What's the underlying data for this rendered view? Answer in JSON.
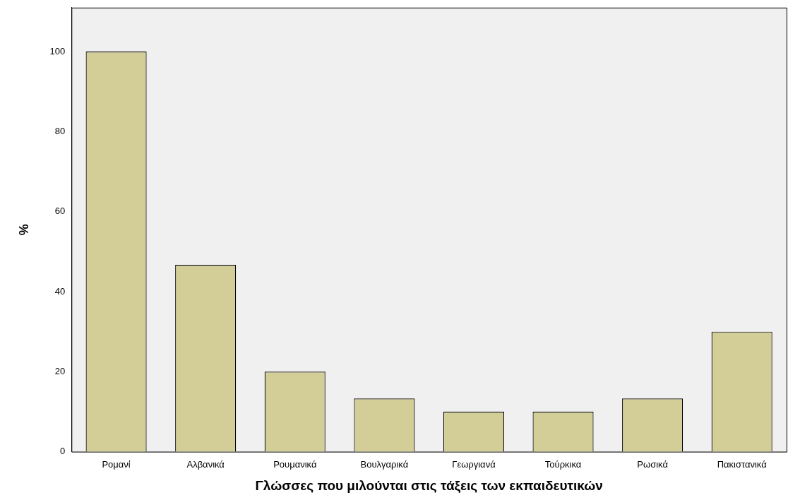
{
  "chart_data": {
    "type": "bar",
    "xlabel": "Γλώσσες που μιλούνται στις τάξεις των εκπαιδευτικών",
    "ylabel": "%",
    "categories": [
      "Ρομανί",
      "Αλβανικά",
      "Ρουμανικά",
      "Βουλγαρικά",
      "Γεωργιανά",
      "Τούρκικα",
      "Ρωσικά",
      "Πακιστανικά"
    ],
    "values": [
      100,
      46.7,
      20,
      13.3,
      10,
      10,
      13.3,
      30
    ],
    "color": "#d3ce98",
    "ylim": [
      0,
      111
    ],
    "yticks": [
      0,
      20,
      40,
      60,
      80,
      100
    ],
    "grid": false,
    "legend": false
  }
}
